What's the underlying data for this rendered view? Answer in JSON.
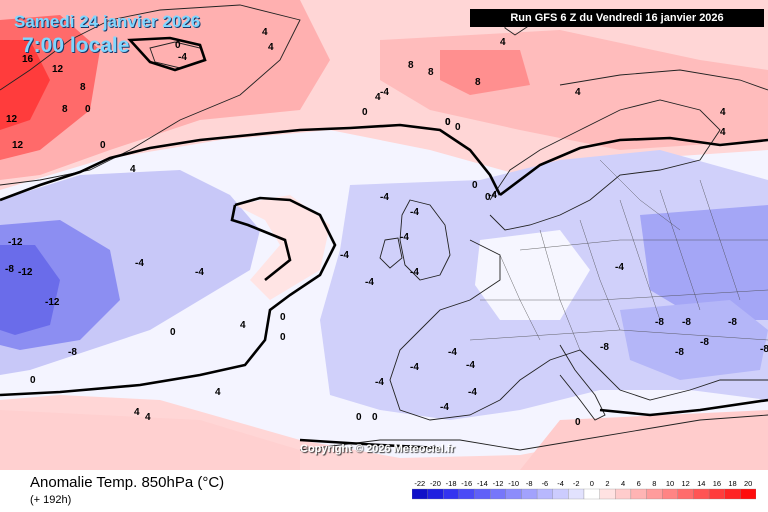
{
  "header": {
    "date": "Samedi 24 janvier 2026",
    "time": "7:00 locale",
    "run": "Run GFS 6 Z du Vendredi 16 janvier 2026"
  },
  "copyright": "Copyright © 2026 Meteociel.fr",
  "footer": {
    "parameter": "Anomalie Temp. 850hPa (°C)",
    "lead": "(+ 192h)"
  },
  "legend": {
    "ticks": [
      "-22",
      "-20",
      "-18",
      "-16",
      "-14",
      "-12",
      "-10",
      "-8",
      "-6",
      "-4",
      "-2",
      "0",
      "2",
      "4",
      "6",
      "8",
      "10",
      "12",
      "14",
      "16",
      "18",
      "20"
    ],
    "colors": [
      "#1010c8",
      "#2020e0",
      "#3434f0",
      "#4a4af6",
      "#6060f8",
      "#7676fa",
      "#8c8cfb",
      "#a2a2fc",
      "#b8b8fd",
      "#ccccfe",
      "#e2e2fe",
      "#ffffff",
      "#ffe2e2",
      "#ffcccc",
      "#ffb4b4",
      "#ff9c9c",
      "#ff8484",
      "#ff6c6c",
      "#ff5454",
      "#ff3c3c",
      "#ff2424",
      "#ff0c0c"
    ]
  },
  "contour_labels": [
    {
      "text": "0"
    },
    {
      "text": "-4"
    },
    {
      "text": "4"
    },
    {
      "text": "16"
    },
    {
      "text": "12"
    },
    {
      "text": "8"
    },
    {
      "text": "8"
    },
    {
      "text": "12"
    },
    {
      "text": "12"
    },
    {
      "text": "0"
    },
    {
      "text": "0"
    },
    {
      "text": "4"
    },
    {
      "text": "4"
    },
    {
      "text": "0"
    },
    {
      "text": "4"
    },
    {
      "text": "8"
    },
    {
      "text": "8"
    },
    {
      "text": "8"
    },
    {
      "text": "4"
    },
    {
      "text": "4"
    },
    {
      "text": "0"
    },
    {
      "text": "-4"
    },
    {
      "text": "-4"
    },
    {
      "text": "-4"
    },
    {
      "text": "-12"
    },
    {
      "text": "-12"
    },
    {
      "text": "-8"
    },
    {
      "text": "-12"
    },
    {
      "text": "-8"
    },
    {
      "text": "0"
    },
    {
      "text": "0"
    },
    {
      "text": "4"
    },
    {
      "text": "0"
    },
    {
      "text": "0"
    },
    {
      "text": "4"
    },
    {
      "text": "4"
    },
    {
      "text": "4"
    },
    {
      "text": "-4"
    },
    {
      "text": "-4"
    },
    {
      "text": "-4"
    },
    {
      "text": "-4"
    },
    {
      "text": "-4"
    },
    {
      "text": "-4"
    },
    {
      "text": "-4"
    },
    {
      "text": "-4"
    },
    {
      "text": "-4"
    },
    {
      "text": "-4"
    },
    {
      "text": "-4"
    },
    {
      "text": "-8"
    },
    {
      "text": "-8"
    },
    {
      "text": "-8"
    },
    {
      "text": "-8"
    },
    {
      "text": "-8"
    },
    {
      "text": "-8"
    },
    {
      "text": "-8"
    },
    {
      "text": "-4"
    },
    {
      "text": "0"
    },
    {
      "text": "0"
    },
    {
      "text": "0"
    },
    {
      "text": "0"
    },
    {
      "text": "-4"
    },
    {
      "text": "-4"
    },
    {
      "text": "0"
    },
    {
      "text": "0"
    },
    {
      "text": "0"
    },
    {
      "text": "4"
    },
    {
      "text": "4"
    }
  ]
}
